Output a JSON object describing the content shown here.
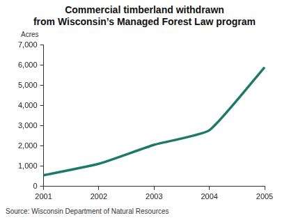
{
  "chart_data": {
    "type": "line",
    "title": [
      "Commercial timberland withdrawn",
      "from Wisconsin’s Managed Forest Law program"
    ],
    "ylabel": "Acres",
    "source": "Source: Wisconsin Department of Natural Resources",
    "categories": [
      "2001",
      "2002",
      "2003",
      "2004",
      "2005"
    ],
    "values": [
      550,
      1120,
      2060,
      2780,
      5900
    ],
    "color": "#1d7a68",
    "line_style": "solid",
    "ylim": [
      0,
      7000
    ],
    "yticks": [
      0,
      {
        "value": 1000,
        "label": "1,000"
      },
      {
        "value": 2000,
        "label": "2,000"
      },
      {
        "value": 3000,
        "label": "3,000"
      },
      {
        "value": 4000,
        "label": "4,000"
      },
      {
        "value": 5000,
        "label": "5,000"
      },
      {
        "value": 6000,
        "label": "6,000"
      },
      {
        "value": 7000,
        "label": "7,000"
      }
    ],
    "grid": false,
    "legend": false
  }
}
